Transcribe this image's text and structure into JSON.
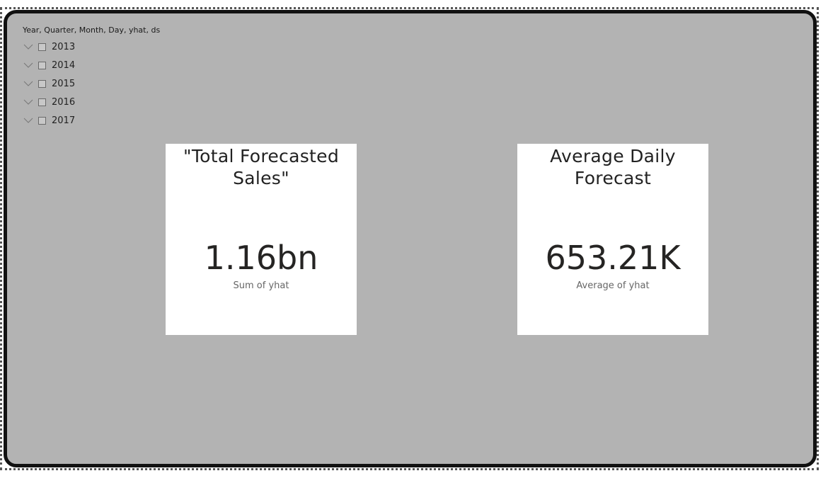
{
  "slicer": {
    "header": "Year, Quarter, Month, Day, yhat, ds",
    "items": [
      {
        "label": "2013"
      },
      {
        "label": "2014"
      },
      {
        "label": "2015"
      },
      {
        "label": "2016"
      },
      {
        "label": "2017"
      }
    ]
  },
  "cards": {
    "total": {
      "title_line1": "\"Total Forecasted",
      "title_line2": "Sales\"",
      "value": "1.16bn",
      "caption": "Sum of yhat"
    },
    "average": {
      "title_line1": "Average Daily",
      "title_line2": "Forecast",
      "value": "653.21K",
      "caption": "Average of yhat"
    }
  },
  "colors": {
    "canvas_background": "#b3b3b3",
    "card_background": "#ffffff",
    "border": "#111111"
  }
}
